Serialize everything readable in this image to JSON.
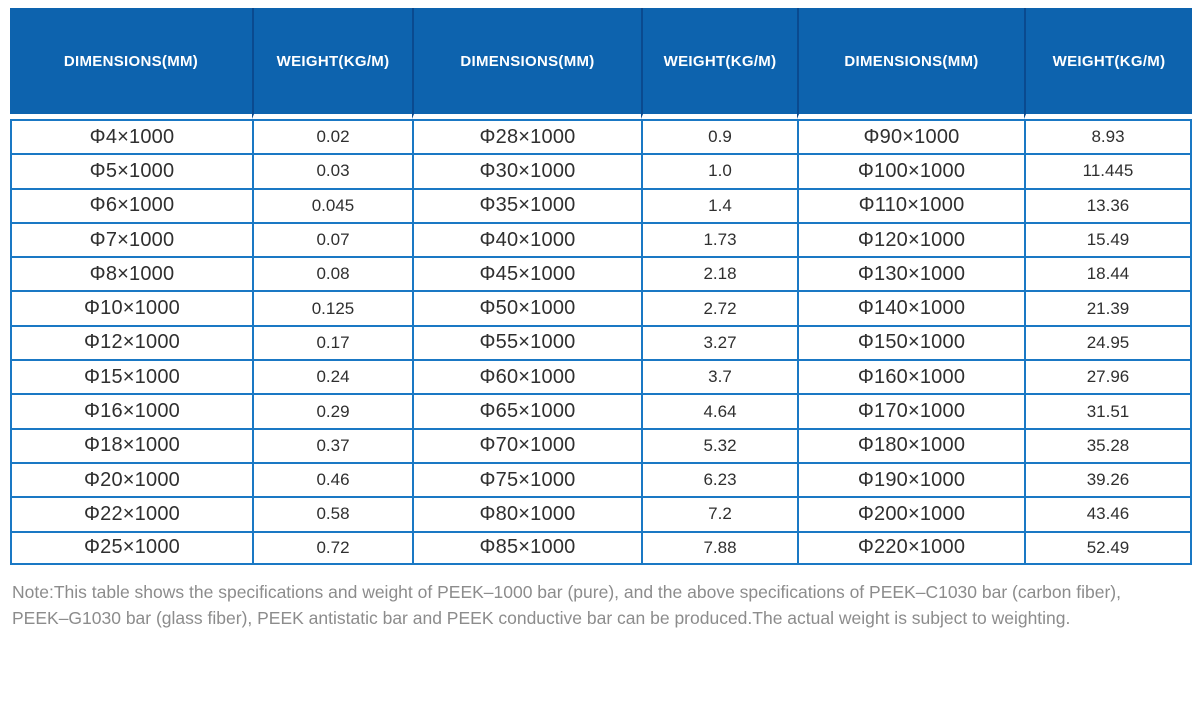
{
  "colors": {
    "header_bg": "#0d63ae",
    "header_divider": "#0a4a8f",
    "header_text": "#ffffff",
    "grid_border": "#1a78c4",
    "cell_text": "#2f2f2f",
    "note_text": "#8c8c8c",
    "page_bg": "#ffffff"
  },
  "table": {
    "columns": [
      {
        "label": "DIMENSIONS(MM)",
        "type": "dimensions"
      },
      {
        "label": "WEIGHT(KG/M)",
        "type": "weight"
      },
      {
        "label": "DIMENSIONS(MM)",
        "type": "dimensions"
      },
      {
        "label": "WEIGHT(KG/M)",
        "type": "weight"
      },
      {
        "label": "DIMENSIONS(MM)",
        "type": "dimensions"
      },
      {
        "label": "WEIGHT(KG/M)",
        "type": "weight"
      }
    ],
    "rows": [
      [
        "Φ4×1000",
        "0.02",
        "Φ28×1000",
        "0.9",
        "Φ90×1000",
        "8.93"
      ],
      [
        "Φ5×1000",
        "0.03",
        "Φ30×1000",
        "1.0",
        "Φ100×1000",
        "11.445"
      ],
      [
        "Φ6×1000",
        "0.045",
        "Φ35×1000",
        "1.4",
        "Φ110×1000",
        "13.36"
      ],
      [
        "Φ7×1000",
        "0.07",
        "Φ40×1000",
        "1.73",
        "Φ120×1000",
        "15.49"
      ],
      [
        "Φ8×1000",
        "0.08",
        "Φ45×1000",
        "2.18",
        "Φ130×1000",
        "18.44"
      ],
      [
        "Φ10×1000",
        "0.125",
        "Φ50×1000",
        "2.72",
        "Φ140×1000",
        "21.39"
      ],
      [
        "Φ12×1000",
        "0.17",
        "Φ55×1000",
        "3.27",
        "Φ150×1000",
        "24.95"
      ],
      [
        "Φ15×1000",
        "0.24",
        "Φ60×1000",
        "3.7",
        "Φ160×1000",
        "27.96"
      ],
      [
        "Φ16×1000",
        "0.29",
        "Φ65×1000",
        "4.64",
        "Φ170×1000",
        "31.51"
      ],
      [
        "Φ18×1000",
        "0.37",
        "Φ70×1000",
        "5.32",
        "Φ180×1000",
        "35.28"
      ],
      [
        "Φ20×1000",
        "0.46",
        "Φ75×1000",
        "6.23",
        "Φ190×1000",
        "39.26"
      ],
      [
        "Φ22×1000",
        "0.58",
        "Φ80×1000",
        "7.2",
        "Φ200×1000",
        "43.46"
      ],
      [
        "Φ25×1000",
        "0.72",
        "Φ85×1000",
        "7.88",
        "Φ220×1000",
        "52.49"
      ]
    ]
  },
  "note": {
    "text": "Note:This table shows the specifications and weight of PEEK–1000 bar (pure), and the above specifications of PEEK–C1030 bar (carbon fiber), PEEK–G1030 bar (glass fiber), PEEK antistatic bar and PEEK conductive bar can be produced.The actual weight is subject to weighting."
  }
}
